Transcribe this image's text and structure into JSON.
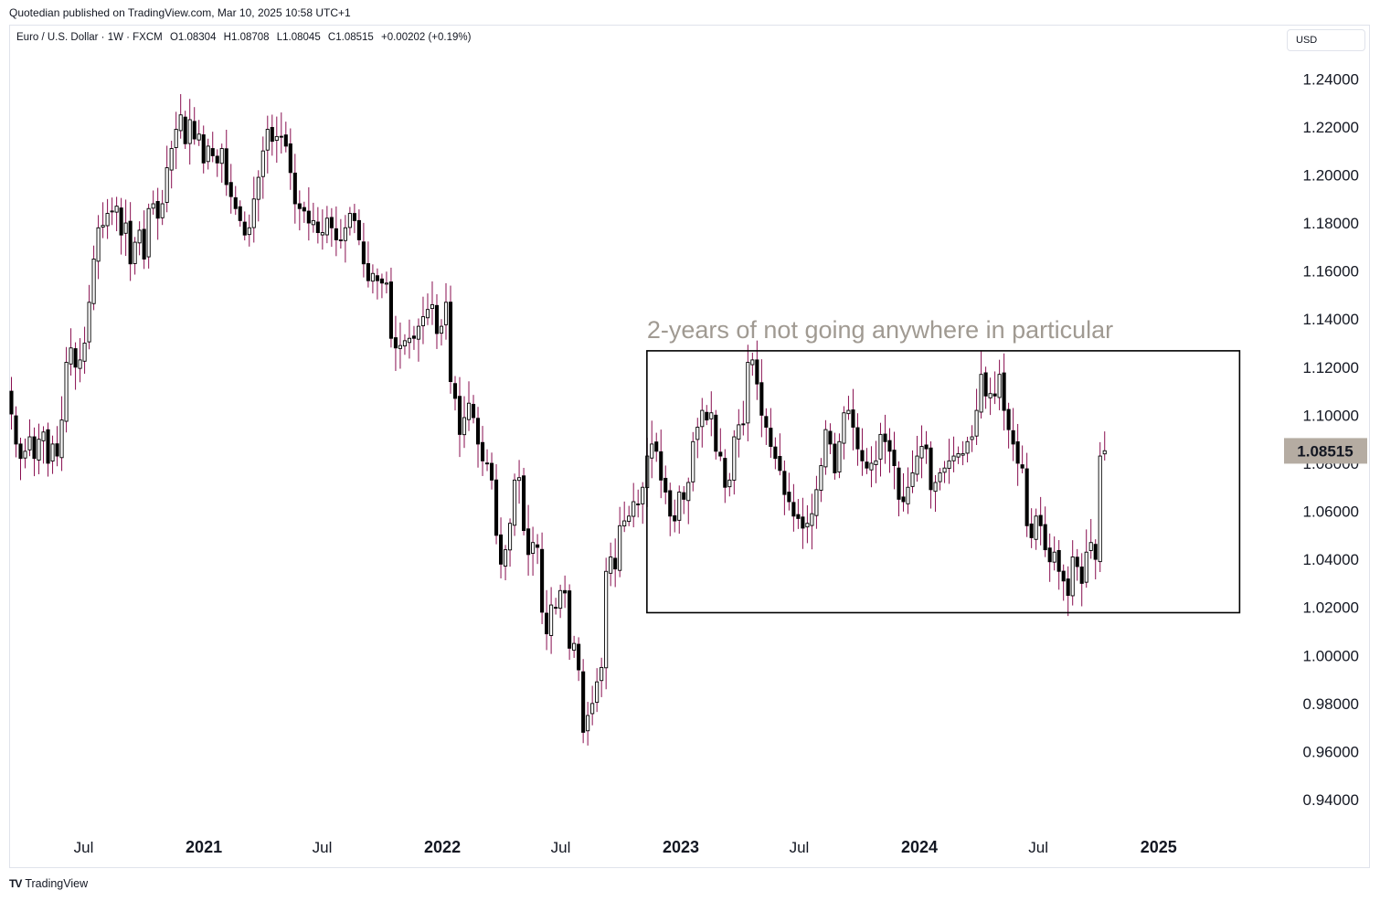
{
  "header": {
    "publisher_line": "Quotedian published on TradingView.com, Mar 10, 2025 10:58 UTC+1",
    "symbol": "Euro / U.S. Dollar · 1W · FXCM",
    "open": "O1.08304",
    "high": "H1.08708",
    "low": "L1.08045",
    "close": "C1.08515",
    "change": "+0.00202 (+0.19%)",
    "currency": "USD"
  },
  "footer": {
    "brand": "TradingView",
    "logo_icon": "tradingview-logo-icon"
  },
  "colors": {
    "candle": "#000000",
    "wick": "#880e4f",
    "annotation": "#a09a92",
    "price_label_bg": "#b5aca2",
    "box": "#000000"
  },
  "chart_data": {
    "type": "candlestick",
    "timeframe": "1W",
    "x_ticks": [
      {
        "label": "Jul",
        "date": "2020-07-01",
        "bold": false
      },
      {
        "label": "2021",
        "date": "2021-01-01",
        "bold": true
      },
      {
        "label": "Jul",
        "date": "2021-07-01",
        "bold": false
      },
      {
        "label": "2022",
        "date": "2022-01-01",
        "bold": true
      },
      {
        "label": "Jul",
        "date": "2022-07-01",
        "bold": false
      },
      {
        "label": "2023",
        "date": "2023-01-01",
        "bold": true
      },
      {
        "label": "Jul",
        "date": "2023-07-01",
        "bold": false
      },
      {
        "label": "2024",
        "date": "2024-01-01",
        "bold": true
      },
      {
        "label": "Jul",
        "date": "2024-07-01",
        "bold": false
      },
      {
        "label": "2025",
        "date": "2025-01-01",
        "bold": true
      }
    ],
    "y_ticks": [
      "1.24000",
      "1.22000",
      "1.20000",
      "1.18000",
      "1.16000",
      "1.14000",
      "1.12000",
      "1.10000",
      "1.08000",
      "1.06000",
      "1.04000",
      "1.02000",
      "1.00000",
      "0.98000",
      "0.96000",
      "0.94000"
    ],
    "x_range": [
      "2020-03-09",
      "2025-07-05"
    ],
    "ylim": [
      0.9305,
      1.25
    ],
    "last_price": "1.08515",
    "annotation": {
      "text": "2-years of not going anywhere in particular",
      "box_x": [
        "2022-11-10",
        "2025-05-05"
      ],
      "box_y": [
        1.0178,
        1.1268
      ]
    },
    "weekly_close": [
      1.1005,
      1.088,
      1.082,
      1.085,
      1.091,
      1.082,
      1.09,
      1.093,
      1.08,
      1.088,
      1.083,
      1.098,
      1.122,
      1.128,
      1.12,
      1.123,
      1.13,
      1.147,
      1.165,
      1.178,
      1.179,
      1.184,
      1.185,
      1.187,
      1.175,
      1.18,
      1.163,
      1.172,
      1.177,
      1.165,
      1.186,
      1.188,
      1.182,
      1.188,
      1.203,
      1.211,
      1.219,
      1.225,
      1.213,
      1.223,
      1.215,
      1.217,
      1.205,
      1.212,
      1.208,
      1.205,
      1.211,
      1.196,
      1.191,
      1.186,
      1.181,
      1.175,
      1.178,
      1.19,
      1.199,
      1.21,
      1.219,
      1.214,
      1.216,
      1.216,
      1.212,
      1.201,
      1.188,
      1.186,
      1.185,
      1.18,
      1.181,
      1.176,
      1.176,
      1.182,
      1.178,
      1.173,
      1.173,
      1.178,
      1.184,
      1.181,
      1.173,
      1.163,
      1.156,
      1.159,
      1.156,
      1.155,
      1.155,
      1.132,
      1.128,
      1.129,
      1.131,
      1.132,
      1.132,
      1.137,
      1.141,
      1.144,
      1.146,
      1.134,
      1.137,
      1.147,
      1.114,
      1.107,
      1.092,
      1.099,
      1.105,
      1.099,
      1.088,
      1.081,
      1.08,
      1.073,
      1.05,
      1.038,
      1.044,
      1.055,
      1.073,
      1.074,
      1.052,
      1.042,
      1.047,
      1.045,
      1.018,
      1.009,
      1.021,
      1.02,
      1.027,
      1.026,
      1.003,
      1.005,
      0.994,
      0.968,
      0.975,
      0.98,
      0.989,
      0.995,
      1.035,
      1.041,
      1.036,
      1.054,
      1.056,
      1.058,
      1.064,
      1.063,
      1.07,
      1.083,
      1.088,
      1.085,
      1.073,
      1.068,
      1.058,
      1.056,
      1.068,
      1.065,
      1.072,
      1.089,
      1.095,
      1.102,
      1.098,
      1.101,
      1.085,
      1.083,
      1.07,
      1.073,
      1.091,
      1.096,
      1.096,
      1.122,
      1.123,
      1.113,
      1.1,
      1.095,
      1.087,
      1.082,
      1.077,
      1.067,
      1.064,
      1.058,
      1.057,
      1.053,
      1.055,
      1.059,
      1.069,
      1.079,
      1.094,
      1.088,
      1.076,
      1.089,
      1.101,
      1.102,
      1.095,
      1.086,
      1.081,
      1.078,
      1.08,
      1.081,
      1.092,
      1.089,
      1.085,
      1.079,
      1.065,
      1.064,
      1.07,
      1.076,
      1.083,
      1.087,
      1.086,
      1.069,
      1.072,
      1.076,
      1.078,
      1.081,
      1.083,
      1.084,
      1.084,
      1.089,
      1.091,
      1.102,
      1.117,
      1.108,
      1.109,
      1.108,
      1.117,
      1.102,
      1.094,
      1.088,
      1.08,
      1.078,
      1.054,
      1.049,
      1.058,
      1.054,
      1.044,
      1.039,
      1.043,
      1.035,
      1.031,
      1.025,
      1.041,
      1.037,
      1.03,
      1.043,
      1.047,
      1.04,
      1.083,
      1.0852
    ],
    "series": [
      {
        "values": "weekly_close"
      }
    ]
  }
}
